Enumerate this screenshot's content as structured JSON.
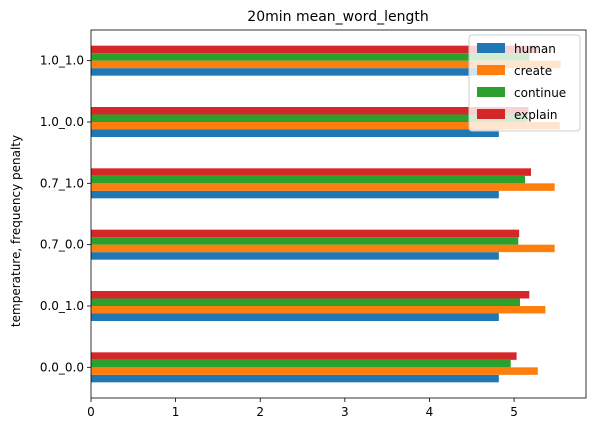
{
  "chart_data": {
    "type": "bar",
    "orientation": "horizontal",
    "title": "20min mean_word_length",
    "xlabel": "",
    "ylabel": "temperature, frequency penalty",
    "xlim": [
      0,
      5.85
    ],
    "xticks": [
      0,
      1,
      2,
      3,
      4,
      5
    ],
    "grid": false,
    "legend_position": "top-right",
    "categories": [
      "0.0_0.0",
      "0.0_1.0",
      "0.7_0.0",
      "0.7_1.0",
      "1.0_0.0",
      "1.0_1.0"
    ],
    "series": [
      {
        "name": "human",
        "color": "#1f77b4",
        "values": [
          4.82,
          4.82,
          4.82,
          4.82,
          4.82,
          4.82
        ]
      },
      {
        "name": "create",
        "color": "#ff7f0e",
        "values": [
          5.28,
          5.37,
          5.48,
          5.48,
          5.54,
          5.55
        ]
      },
      {
        "name": "continue",
        "color": "#2ca02c",
        "values": [
          4.96,
          5.07,
          5.05,
          5.13,
          5.16,
          5.18
        ]
      },
      {
        "name": "explain",
        "color": "#d62728",
        "values": [
          5.03,
          5.18,
          5.06,
          5.2,
          5.17,
          5.28
        ]
      }
    ]
  }
}
